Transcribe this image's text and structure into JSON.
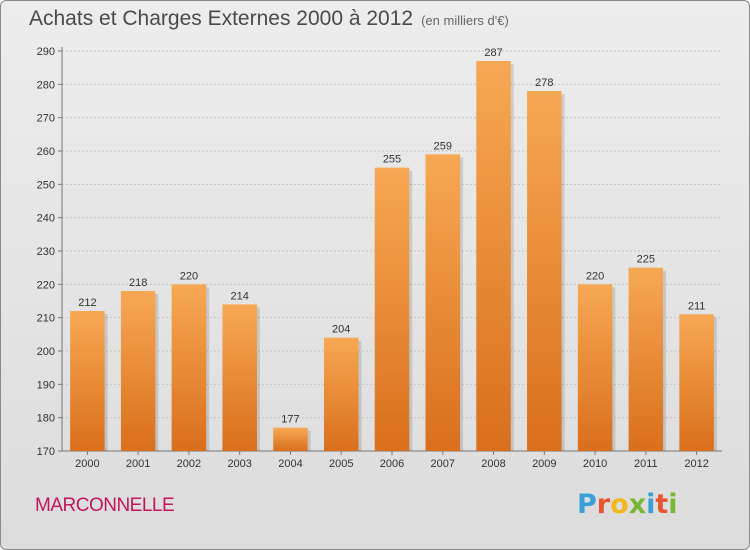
{
  "header": {
    "title": "Achats et Charges Externes 2000 à 2012",
    "unit": "(en milliers d'€)"
  },
  "footer": {
    "commune": "MARCONNELLE",
    "logo_letters": [
      {
        "char": "P",
        "color": "#3aa0d8"
      },
      {
        "char": "r",
        "color": "#e9552d"
      },
      {
        "char": "o",
        "color": "#f2b81c"
      },
      {
        "char": "x",
        "color": "#79b833"
      },
      {
        "char": "i",
        "color": "#3aa0d8"
      },
      {
        "char": "t",
        "color": "#e9552d"
      },
      {
        "char": "i",
        "color": "#79b833"
      }
    ]
  },
  "chart_data": {
    "type": "bar",
    "title": "Achats et Charges Externes 2000 à 2012",
    "subtitle": "(en milliers d'€)",
    "categories": [
      "2000",
      "2001",
      "2002",
      "2003",
      "2004",
      "2005",
      "2006",
      "2007",
      "2008",
      "2009",
      "2010",
      "2011",
      "2012"
    ],
    "values": [
      212,
      218,
      220,
      214,
      177,
      204,
      255,
      259,
      287,
      278,
      220,
      225,
      211
    ],
    "ylim": [
      170,
      290
    ],
    "yticks": [
      170,
      180,
      190,
      200,
      210,
      220,
      230,
      240,
      250,
      260,
      270,
      280,
      290
    ],
    "grid": true,
    "bar_color_top": "#f7a854",
    "bar_color_bottom": "#d96f1c"
  }
}
